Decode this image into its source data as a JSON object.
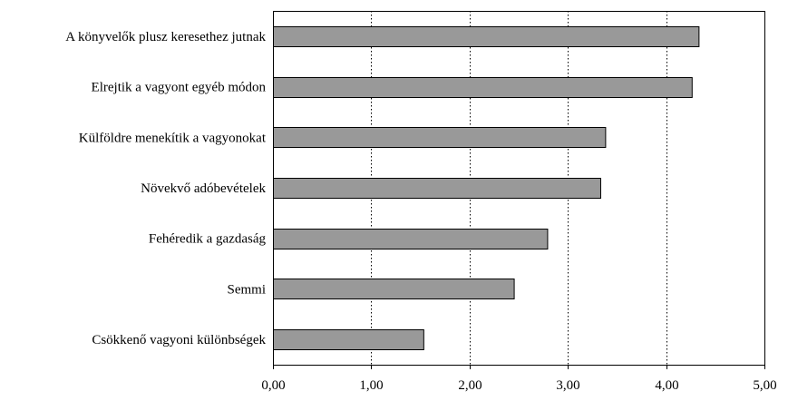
{
  "chart_data": {
    "type": "bar",
    "orientation": "horizontal",
    "title": "",
    "xlabel": "",
    "ylabel": "",
    "categories": [
      "A könyvelők plusz keresethez jutnak",
      "Elrejtik a vagyont egyéb módon",
      "Külföldre menekítik a vagyonokat",
      "Növekvő adóbevételek",
      "Fehéredik a gazdaság",
      "Semmi",
      "Csökkenő vagyoni különbségek"
    ],
    "values": [
      4.33,
      4.26,
      3.38,
      3.33,
      2.79,
      2.45,
      1.53
    ],
    "xlim": [
      0,
      5
    ],
    "xticks": [
      0,
      1,
      2,
      3,
      4,
      5
    ],
    "tick_labels": [
      "0,00",
      "1,00",
      "2,00",
      "3,00",
      "4,00",
      "5,00"
    ],
    "grid": "vertical dotted",
    "legend": "none",
    "colors": {
      "bar_fill": "#999999",
      "bar_stroke": "#000000",
      "grid": "#000000",
      "frame": "#000000"
    }
  }
}
